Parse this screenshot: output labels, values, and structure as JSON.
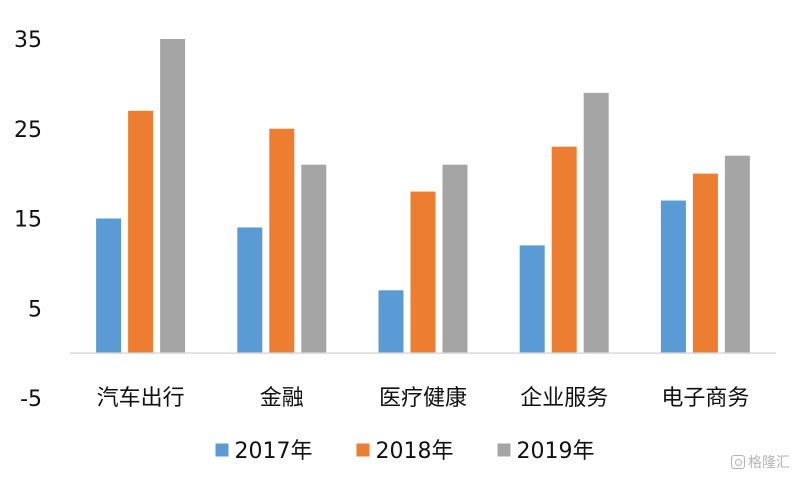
{
  "chart_data": {
    "type": "bar",
    "title": "",
    "xlabel": "",
    "ylabel": "",
    "categories": [
      "汽车出行",
      "金融",
      "医疗健康",
      "企业服务",
      "电子商务"
    ],
    "series": [
      {
        "name": "2017年",
        "color": "#5B9BD5",
        "values": [
          15,
          14,
          7,
          12,
          17
        ]
      },
      {
        "name": "2018年",
        "color": "#ED7D31",
        "values": [
          27,
          25,
          18,
          23,
          20
        ]
      },
      {
        "name": "2019年",
        "color": "#A5A5A5",
        "values": [
          35,
          21,
          21,
          29,
          22
        ]
      }
    ],
    "ylim": [
      -5,
      35
    ],
    "yticks": [
      "-5",
      "5",
      "15",
      "25",
      "35"
    ],
    "ytick_values": [
      -5,
      5,
      15,
      25,
      35
    ],
    "grid": false,
    "legend_position": "bottom",
    "axis_color": "#D9D9D9"
  },
  "watermark": {
    "text": "格隆汇",
    "icon": "gelonghui-logo-icon"
  }
}
